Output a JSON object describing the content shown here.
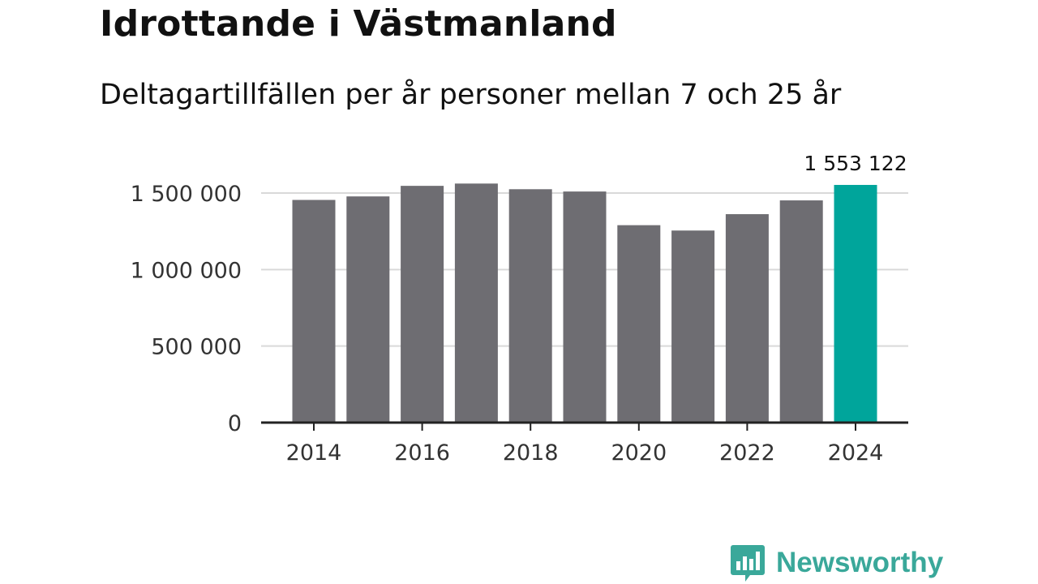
{
  "title": "Idrottande i Västmanland",
  "subtitle": "Deltagartillfällen per år personer mellan 7 och 25 år",
  "colors": {
    "bar": "#6e6d72",
    "highlight": "#00a59b",
    "grid": "#d9d9d9",
    "axis": "#222222",
    "brand": "#3aa89a"
  },
  "chart_data": {
    "type": "bar",
    "categories": [
      "2014",
      "2015",
      "2016",
      "2017",
      "2018",
      "2019",
      "2020",
      "2021",
      "2022",
      "2023",
      "2024"
    ],
    "values": [
      1455000,
      1478000,
      1547000,
      1562000,
      1525000,
      1510000,
      1290000,
      1255000,
      1362000,
      1452000,
      1553122
    ],
    "highlight_index": 10,
    "highlight_label": "1 553 122",
    "ylim": [
      0,
      1500000
    ],
    "yticks": [
      0,
      500000,
      1000000,
      1500000
    ],
    "ytick_labels": [
      "0",
      "500 000",
      "1 000 000",
      "1 500 000"
    ],
    "xtick_labels": [
      "2014",
      "2016",
      "2018",
      "2020",
      "2022",
      "2024"
    ],
    "xtick_indices": [
      0,
      2,
      4,
      6,
      8,
      10
    ],
    "grid": true,
    "xlabel": "",
    "ylabel": ""
  },
  "logo": {
    "text": "Newsworthy",
    "icon": "bar-chart-bubble-icon"
  }
}
